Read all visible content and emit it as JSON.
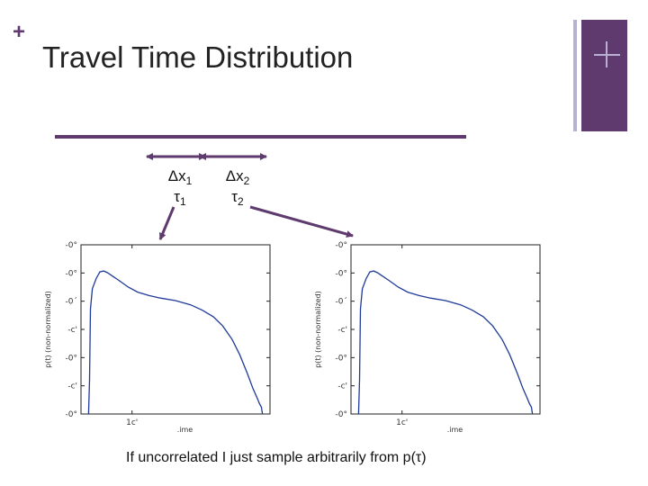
{
  "slide": {
    "title": "Travel Time Distribution",
    "plus_glyph": "+",
    "caption": "If uncorrelated I just sample arbitrarily from p(τ)",
    "accent_color": "#5e3a6e",
    "accent_light": "#b7b0d3"
  },
  "segments": [
    {
      "dx": "Δx",
      "dx_sub": "1",
      "tau": "τ",
      "tau_sub": "1"
    },
    {
      "dx": "Δx",
      "dx_sub": "2",
      "tau": "τ",
      "tau_sub": "2"
    }
  ],
  "chart_data": [
    {
      "type": "line",
      "title": "",
      "xlabel": ".ime",
      "ylabel": "p(t) (non-normalized)",
      "x_ticks": [
        {
          "at": 0.27,
          "label": "1c'"
        }
      ],
      "y_ticks": [
        "-0°",
        "-0°",
        "-0´",
        "-c'",
        "-0°",
        "-c'",
        "-0°"
      ],
      "grid": false,
      "line_color": "#1f3a99",
      "curve": [
        [
          0.04,
          0.0
        ],
        [
          0.045,
          0.2
        ],
        [
          0.05,
          0.62
        ],
        [
          0.06,
          0.74
        ],
        [
          0.08,
          0.8
        ],
        [
          0.1,
          0.84
        ],
        [
          0.12,
          0.845
        ],
        [
          0.14,
          0.835
        ],
        [
          0.16,
          0.82
        ],
        [
          0.2,
          0.79
        ],
        [
          0.25,
          0.75
        ],
        [
          0.3,
          0.72
        ],
        [
          0.36,
          0.7
        ],
        [
          0.42,
          0.685
        ],
        [
          0.5,
          0.67
        ],
        [
          0.58,
          0.645
        ],
        [
          0.64,
          0.615
        ],
        [
          0.7,
          0.575
        ],
        [
          0.75,
          0.52
        ],
        [
          0.8,
          0.44
        ],
        [
          0.84,
          0.35
        ],
        [
          0.88,
          0.24
        ],
        [
          0.91,
          0.15
        ],
        [
          0.93,
          0.1
        ],
        [
          0.945,
          0.06
        ],
        [
          0.955,
          0.04
        ],
        [
          0.96,
          0.0
        ]
      ]
    },
    {
      "type": "line",
      "title": "",
      "xlabel": ".ime",
      "ylabel": "p(t) (non-normalized)",
      "x_ticks": [
        {
          "at": 0.27,
          "label": "1c'"
        }
      ],
      "y_ticks": [
        "-0°",
        "-0°",
        "-0´",
        "-c'",
        "-0°",
        "-c'",
        "-0°"
      ],
      "grid": false,
      "line_color": "#1f3a99",
      "curve": [
        [
          0.04,
          0.0
        ],
        [
          0.045,
          0.2
        ],
        [
          0.05,
          0.62
        ],
        [
          0.06,
          0.74
        ],
        [
          0.08,
          0.8
        ],
        [
          0.1,
          0.84
        ],
        [
          0.12,
          0.845
        ],
        [
          0.14,
          0.835
        ],
        [
          0.16,
          0.82
        ],
        [
          0.2,
          0.79
        ],
        [
          0.25,
          0.75
        ],
        [
          0.3,
          0.72
        ],
        [
          0.36,
          0.7
        ],
        [
          0.42,
          0.685
        ],
        [
          0.5,
          0.67
        ],
        [
          0.58,
          0.645
        ],
        [
          0.64,
          0.615
        ],
        [
          0.7,
          0.575
        ],
        [
          0.75,
          0.52
        ],
        [
          0.8,
          0.44
        ],
        [
          0.84,
          0.35
        ],
        [
          0.88,
          0.24
        ],
        [
          0.91,
          0.15
        ],
        [
          0.93,
          0.1
        ],
        [
          0.945,
          0.06
        ],
        [
          0.955,
          0.04
        ],
        [
          0.96,
          0.0
        ]
      ]
    }
  ]
}
